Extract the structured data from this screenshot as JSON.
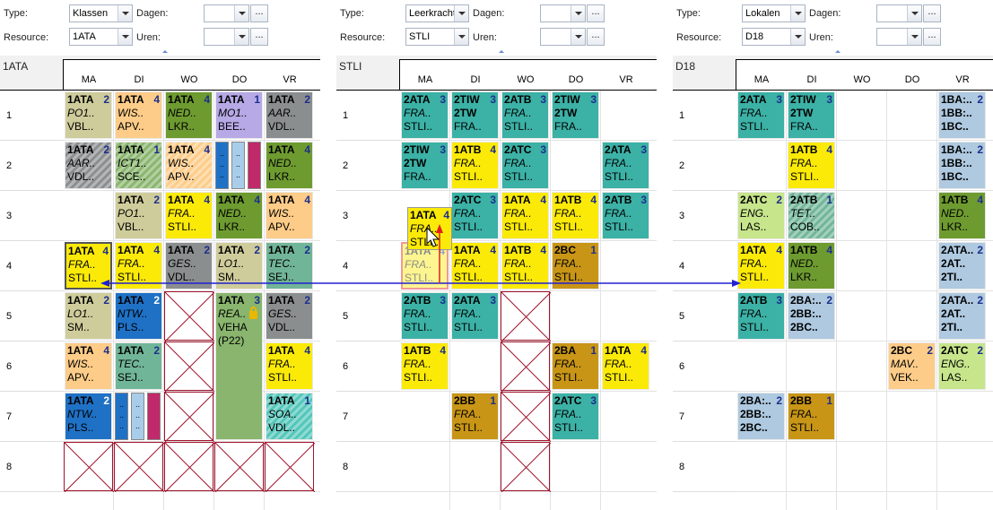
{
  "panels": [
    {
      "type_label": "Type:",
      "type_value": "Klassen",
      "resource_label": "Resource:",
      "resource_value": "1ATA",
      "dagen_label": "Dagen:",
      "uren_label": "Uren:",
      "dots": "...",
      "title": "1ATA"
    },
    {
      "type_label": "Type:",
      "type_value": "Leerkracht",
      "resource_label": "Resource:",
      "resource_value": "STLI",
      "dagen_label": "Dagen:",
      "uren_label": "Uren:",
      "dots": "...",
      "title": "STLI"
    },
    {
      "type_label": "Type:",
      "type_value": "Lokalen",
      "resource_label": "Resource:",
      "resource_value": "D18",
      "dagen_label": "Dagen:",
      "uren_label": "Uren:",
      "dots": "...",
      "title": "D18"
    }
  ],
  "days": [
    "MA",
    "DI",
    "WO",
    "DO",
    "VR"
  ],
  "hours": [
    "1",
    "2",
    "3",
    "4",
    "5",
    "6",
    "7",
    "8"
  ],
  "colors": {
    "tan": "#cfcc9b",
    "yellow": "#fbea08",
    "green": "#6e9b30",
    "lavender": "#b6a9e6",
    "gray": "#8b8e8f",
    "orange": "#fdcc88",
    "blue": "#1f71c6",
    "teal": "#3cb1a6",
    "sea": "#71b598",
    "olive": "#89b56e",
    "lime": "#c7e58b",
    "bronze": "#c89516",
    "cyan": "#52c6ba",
    "sky": "#a8cdea",
    "magenta": "#c02a6a",
    "lightblue": "#aec9e0"
  },
  "lessons": [
    [
      {
        "p": 0,
        "d": 0,
        "h": 0,
        "l1": "1ATA",
        "n": "2",
        "l2": "PO1..",
        "l3": "VBL..",
        "c": "tan"
      },
      {
        "p": 0,
        "d": 1,
        "h": 0,
        "l1": "1ATA",
        "n": "4",
        "l2": "WIS..",
        "l3": "APV..",
        "c": "orange"
      },
      {
        "p": 0,
        "d": 2,
        "h": 0,
        "l1": "1ATA",
        "n": "4",
        "l2": "NED..",
        "l3": "LKR..",
        "c": "green"
      },
      {
        "p": 0,
        "d": 3,
        "h": 0,
        "l1": "1ATA",
        "n": "1",
        "l2": "MO1..",
        "l3": "BEE..",
        "c": "lavender"
      },
      {
        "p": 0,
        "d": 4,
        "h": 0,
        "l1": "1ATA",
        "n": "2",
        "l2": "AAR..",
        "l3": "VDL..",
        "c": "gray"
      },
      {
        "p": 0,
        "d": 0,
        "h": 1,
        "l1": "1ATA",
        "n": "2",
        "l2": "AAR..",
        "l3": "VDL..",
        "c": "gray",
        "hatch": true
      },
      {
        "p": 0,
        "d": 1,
        "h": 1,
        "l1": "1ATA",
        "n": "1",
        "l2": "ICT1..",
        "l3": "SCE..",
        "c": "olive",
        "hatch": true
      },
      {
        "p": 0,
        "d": 2,
        "h": 1,
        "l1": "1ATA",
        "n": "4",
        "l2": "WIS..",
        "l3": "APV..",
        "c": "orange",
        "hatch": true
      },
      {
        "p": 0,
        "d": 4,
        "h": 1,
        "l1": "1ATA",
        "n": "4",
        "l2": "NED..",
        "l3": "LKR..",
        "c": "green"
      },
      {
        "p": 0,
        "d": 1,
        "h": 2,
        "l1": "1ATA",
        "n": "2",
        "l2": "PO1..",
        "l3": "VBL..",
        "c": "tan"
      },
      {
        "p": 0,
        "d": 2,
        "h": 2,
        "l1": "1ATA",
        "n": "4",
        "l2": "FRA..",
        "l3": "STLI..",
        "c": "yellow"
      },
      {
        "p": 0,
        "d": 3,
        "h": 2,
        "l1": "1ATA",
        "n": "4",
        "l2": "NED..",
        "l3": "LKR..",
        "c": "green"
      },
      {
        "p": 0,
        "d": 4,
        "h": 2,
        "l1": "1ATA",
        "n": "4",
        "l2": "WIS..",
        "l3": "APV..",
        "c": "orange"
      },
      {
        "p": 0,
        "d": 0,
        "h": 3,
        "l1": "1ATA",
        "n": "4",
        "l2": "FRA..",
        "l3": "STLI..",
        "c": "yellow",
        "sel": true
      },
      {
        "p": 0,
        "d": 1,
        "h": 3,
        "l1": "1ATA",
        "n": "4",
        "l2": "FRA..",
        "l3": "STLI..",
        "c": "yellow"
      },
      {
        "p": 0,
        "d": 2,
        "h": 3,
        "l1": "1ATA",
        "n": "2",
        "l2": "GES..",
        "l3": "VDL..",
        "c": "gray"
      },
      {
        "p": 0,
        "d": 3,
        "h": 3,
        "l1": "1ATA",
        "n": "2",
        "l2": "LO1..",
        "l3": "SM..",
        "c": "tan"
      },
      {
        "p": 0,
        "d": 4,
        "h": 3,
        "l1": "1ATA",
        "n": "2",
        "l2": "TEC..",
        "l3": "SEJ..",
        "c": "sea"
      },
      {
        "p": 0,
        "d": 0,
        "h": 4,
        "l1": "1ATA",
        "n": "2",
        "l2": "LO1..",
        "l3": "SM..",
        "c": "tan"
      },
      {
        "p": 0,
        "d": 1,
        "h": 4,
        "l1": "1ATA",
        "n": "2",
        "l2": "NTW..",
        "l3": "PLS..",
        "c": "blue"
      },
      {
        "p": 0,
        "d": 3,
        "h": 4,
        "l1": "1ATA",
        "n": "3",
        "l2": "REA..",
        "l3": "VEHA",
        "l4": "(P22)",
        "c": "olive",
        "span": 3,
        "lock": true
      },
      {
        "p": 0,
        "d": 4,
        "h": 4,
        "l1": "1ATA",
        "n": "2",
        "l2": "GES..",
        "l3": "VDL..",
        "c": "gray"
      },
      {
        "p": 0,
        "d": 0,
        "h": 5,
        "l1": "1ATA",
        "n": "4",
        "l2": "WIS..",
        "l3": "APV..",
        "c": "orange"
      },
      {
        "p": 0,
        "d": 1,
        "h": 5,
        "l1": "1ATA",
        "n": "2",
        "l2": "TEC..",
        "l3": "SEJ..",
        "c": "sea"
      },
      {
        "p": 0,
        "d": 4,
        "h": 5,
        "l1": "1ATA",
        "n": "4",
        "l2": "FRA..",
        "l3": "STLI..",
        "c": "yellow"
      },
      {
        "p": 0,
        "d": 0,
        "h": 6,
        "l1": "1ATA",
        "n": "2",
        "l2": "NTW..",
        "l3": "PLS..",
        "c": "blue"
      },
      {
        "p": 0,
        "d": 4,
        "h": 6,
        "l1": "1ATA",
        "n": "1",
        "l2": "SOA..",
        "l3": "VDL..",
        "c": "cyan",
        "hatch": true
      }
    ],
    [
      {
        "p": 1,
        "d": 0,
        "h": 0,
        "l1": "2ATA",
        "n": "3",
        "l2": "FRA..",
        "l3": "STLI..",
        "c": "teal"
      },
      {
        "p": 1,
        "d": 1,
        "h": 0,
        "l1": "2TIW",
        "n": "3",
        "l2": "2TW",
        "l3": "FRA..",
        "c": "teal",
        "bold2": true
      },
      {
        "p": 1,
        "d": 2,
        "h": 0,
        "l1": "2ATB",
        "n": "3",
        "l2": "FRA..",
        "l3": "STLI..",
        "c": "teal"
      },
      {
        "p": 1,
        "d": 3,
        "h": 0,
        "l1": "2TIW",
        "n": "3",
        "l2": "2TW",
        "l3": "FRA..",
        "c": "teal",
        "bold2": true
      },
      {
        "p": 1,
        "d": 0,
        "h": 1,
        "l1": "2TIW",
        "n": "3",
        "l2": "2TW",
        "l3": "FRA..",
        "c": "teal",
        "bold2": true
      },
      {
        "p": 1,
        "d": 1,
        "h": 1,
        "l1": "1ATB",
        "n": "4",
        "l2": "FRA..",
        "l3": "STLI..",
        "c": "yellow"
      },
      {
        "p": 1,
        "d": 2,
        "h": 1,
        "l1": "2ATC",
        "n": "3",
        "l2": "FRA..",
        "l3": "STLI..",
        "c": "teal"
      },
      {
        "p": 1,
        "d": 4,
        "h": 1,
        "l1": "2ATA",
        "n": "3",
        "l2": "FRA..",
        "l3": "STLI..",
        "c": "teal"
      },
      {
        "p": 1,
        "d": 1,
        "h": 2,
        "l1": "2ATC",
        "n": "3",
        "l2": "FRA..",
        "l3": "STLI..",
        "c": "teal"
      },
      {
        "p": 1,
        "d": 2,
        "h": 2,
        "l1": "1ATA",
        "n": "4",
        "l2": "FRA..",
        "l3": "STLI..",
        "c": "yellow"
      },
      {
        "p": 1,
        "d": 3,
        "h": 2,
        "l1": "1ATB",
        "n": "4",
        "l2": "FRA..",
        "l3": "STLI..",
        "c": "yellow"
      },
      {
        "p": 1,
        "d": 4,
        "h": 2,
        "l1": "2ATB",
        "n": "3",
        "l2": "FRA..",
        "l3": "STLI..",
        "c": "teal"
      },
      {
        "p": 1,
        "d": 1,
        "h": 3,
        "l1": "1ATA",
        "n": "4",
        "l2": "FRA..",
        "l3": "STLI..",
        "c": "yellow"
      },
      {
        "p": 1,
        "d": 2,
        "h": 3,
        "l1": "1ATB",
        "n": "4",
        "l2": "FRA..",
        "l3": "STLI..",
        "c": "yellow"
      },
      {
        "p": 1,
        "d": 3,
        "h": 3,
        "l1": "2BC",
        "n": "1",
        "l2": "FRA..",
        "l3": "STLI..",
        "c": "bronze"
      },
      {
        "p": 1,
        "d": 0,
        "h": 4,
        "l1": "2ATB",
        "n": "3",
        "l2": "FRA..",
        "l3": "STLI..",
        "c": "teal"
      },
      {
        "p": 1,
        "d": 1,
        "h": 4,
        "l1": "2ATA",
        "n": "3",
        "l2": "FRA..",
        "l3": "STLI..",
        "c": "teal"
      },
      {
        "p": 1,
        "d": 0,
        "h": 5,
        "l1": "1ATB",
        "n": "4",
        "l2": "FRA..",
        "l3": "STLI..",
        "c": "yellow"
      },
      {
        "p": 1,
        "d": 3,
        "h": 5,
        "l1": "2BA",
        "n": "1",
        "l2": "FRA..",
        "l3": "STLI..",
        "c": "bronze"
      },
      {
        "p": 1,
        "d": 4,
        "h": 5,
        "l1": "1ATA",
        "n": "4",
        "l2": "FRA..",
        "l3": "STLI..",
        "c": "yellow"
      },
      {
        "p": 1,
        "d": 1,
        "h": 6,
        "l1": "2BB",
        "n": "1",
        "l2": "FRA..",
        "l3": "STLI..",
        "c": "bronze"
      },
      {
        "p": 1,
        "d": 3,
        "h": 6,
        "l1": "2ATC",
        "n": "3",
        "l2": "FRA..",
        "l3": "STLI..",
        "c": "teal"
      }
    ],
    [
      {
        "p": 2,
        "d": 0,
        "h": 0,
        "l1": "2ATA",
        "n": "3",
        "l2": "FRA..",
        "l3": "STLI..",
        "c": "teal"
      },
      {
        "p": 2,
        "d": 1,
        "h": 0,
        "l1": "2TIW",
        "n": "3",
        "l2": "2TW",
        "l3": "FRA..",
        "c": "teal",
        "bold2": true
      },
      {
        "p": 2,
        "d": 4,
        "h": 0,
        "l1": "1BA:..",
        "n": "2",
        "l2": "1BB:..",
        "l3": "1BC..",
        "c": "lightblue",
        "bold2": true,
        "bold3": true
      },
      {
        "p": 2,
        "d": 1,
        "h": 1,
        "l1": "1ATB",
        "n": "4",
        "l2": "FRA..",
        "l3": "STLI..",
        "c": "yellow"
      },
      {
        "p": 2,
        "d": 4,
        "h": 1,
        "l1": "1BA:..",
        "n": "2",
        "l2": "1BB:..",
        "l3": "1BC..",
        "c": "lightblue",
        "bold2": true,
        "bold3": true
      },
      {
        "p": 2,
        "d": 0,
        "h": 2,
        "l1": "2ATC",
        "n": "2",
        "l2": "ENG..",
        "l3": "LAS..",
        "c": "lime"
      },
      {
        "p": 2,
        "d": 1,
        "h": 2,
        "l1": "2ATB",
        "n": "1",
        "l2": "TET..",
        "l3": "COB..",
        "c": "sea",
        "hatch": true
      },
      {
        "p": 2,
        "d": 4,
        "h": 2,
        "l1": "1ATB",
        "n": "4",
        "l2": "NED..",
        "l3": "LKR..",
        "c": "green"
      },
      {
        "p": 2,
        "d": 0,
        "h": 3,
        "l1": "1ATA",
        "n": "4",
        "l2": "FRA..",
        "l3": "STLI..",
        "c": "yellow"
      },
      {
        "p": 2,
        "d": 1,
        "h": 3,
        "l1": "1ATB",
        "n": "4",
        "l2": "NED..",
        "l3": "LKR..",
        "c": "green"
      },
      {
        "p": 2,
        "d": 4,
        "h": 3,
        "l1": "2ATA..",
        "n": "2",
        "l2": "2AT..",
        "l3": "2TI..",
        "c": "lightblue",
        "bold2": true,
        "bold3": true
      },
      {
        "p": 2,
        "d": 0,
        "h": 4,
        "l1": "2ATB",
        "n": "3",
        "l2": "FRA..",
        "l3": "STLI..",
        "c": "teal"
      },
      {
        "p": 2,
        "d": 1,
        "h": 4,
        "l1": "2BA:..",
        "n": "2",
        "l2": "2BB:..",
        "l3": "2BC..",
        "c": "lightblue",
        "bold2": true,
        "bold3": true
      },
      {
        "p": 2,
        "d": 4,
        "h": 4,
        "l1": "2ATA..",
        "n": "2",
        "l2": "2AT..",
        "l3": "2TI..",
        "c": "lightblue",
        "bold2": true,
        "bold3": true
      },
      {
        "p": 2,
        "d": 3,
        "h": 5,
        "l1": "2BC",
        "n": "2",
        "l2": "MAV..",
        "l3": "VEK..",
        "c": "orange"
      },
      {
        "p": 2,
        "d": 4,
        "h": 5,
        "l1": "2ATC",
        "n": "2",
        "l2": "ENG..",
        "l3": "LAS..",
        "c": "lime"
      },
      {
        "p": 2,
        "d": 0,
        "h": 6,
        "l1": "2BA:..",
        "n": "2",
        "l2": "2BB:..",
        "l3": "2BC..",
        "c": "lightblue",
        "bold2": true,
        "bold3": true
      },
      {
        "p": 2,
        "d": 1,
        "h": 6,
        "l1": "2BB",
        "n": "1",
        "l2": "FRA..",
        "l3": "STLI..",
        "c": "bronze"
      }
    ]
  ],
  "blocked": [
    {
      "p": 0,
      "d": 2,
      "h": 4
    },
    {
      "p": 0,
      "d": 2,
      "h": 5
    },
    {
      "p": 0,
      "d": 2,
      "h": 6
    },
    {
      "p": 0,
      "d": 0,
      "h": 7
    },
    {
      "p": 0,
      "d": 1,
      "h": 7
    },
    {
      "p": 0,
      "d": 2,
      "h": 7
    },
    {
      "p": 0,
      "d": 3,
      "h": 7
    },
    {
      "p": 0,
      "d": 4,
      "h": 7
    },
    {
      "p": 1,
      "d": 2,
      "h": 4
    },
    {
      "p": 1,
      "d": 2,
      "h": 5
    },
    {
      "p": 1,
      "d": 2,
      "h": 6
    },
    {
      "p": 1,
      "d": 2,
      "h": 7
    }
  ],
  "splits": [
    {
      "p": 0,
      "d": 3,
      "h": 1,
      "colors": [
        "blue",
        "sky",
        "magenta"
      ]
    },
    {
      "p": 0,
      "d": 1,
      "h": 6,
      "colors": [
        "blue",
        "sky",
        "magenta"
      ]
    }
  ],
  "drag": {
    "l1": "1ATA",
    "n": "4",
    "l2": "FRA..",
    "l3": "STLI..",
    "c": "yellow",
    "ghost_l1": "1ATA",
    "ghost_n": "4",
    "ghost_l2": "FRA..",
    "ghost_l3": "STLI.."
  }
}
